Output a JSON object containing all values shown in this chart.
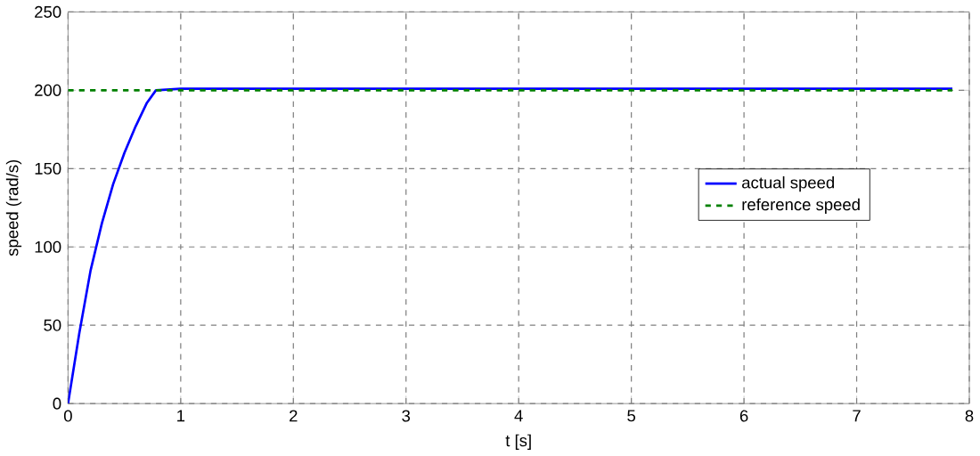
{
  "chart_data": {
    "type": "line",
    "xlabel": "t [s]",
    "ylabel": "speed (rad/s)",
    "xlim": [
      0,
      8
    ],
    "ylim": [
      0,
      250
    ],
    "xticks": [
      0,
      1,
      2,
      3,
      4,
      5,
      6,
      7,
      8
    ],
    "yticks": [
      0,
      50,
      100,
      150,
      200,
      250
    ],
    "grid": true,
    "legend": "right",
    "marker": "none",
    "series": [
      {
        "name": "actual speed",
        "color": "#0000ff",
        "line_style": "solid",
        "x": [
          0,
          0.1,
          0.2,
          0.3,
          0.4,
          0.5,
          0.6,
          0.7,
          0.78,
          1,
          2,
          3,
          4,
          5,
          6,
          7,
          7.85
        ],
        "values": [
          0,
          45,
          85,
          115,
          140,
          160,
          177,
          192,
          200,
          201,
          201,
          201,
          201,
          201,
          201,
          201,
          201
        ]
      },
      {
        "name": "reference speed",
        "color": "#008000",
        "line_style": "dashed",
        "x": [
          0,
          7.85
        ],
        "values": [
          200,
          200
        ]
      }
    ]
  }
}
